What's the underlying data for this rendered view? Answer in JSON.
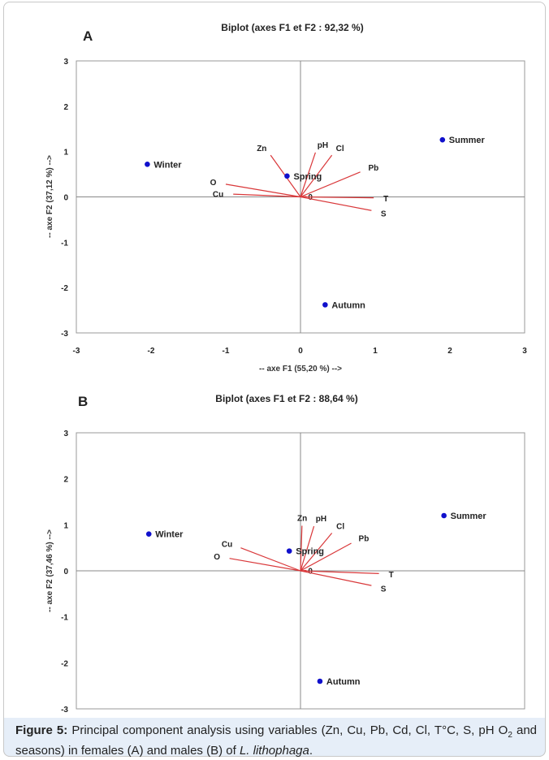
{
  "panels": [
    {
      "letter": "A",
      "title": "Biplot (axes F1 et F2 : 92,32 %)",
      "xlabel": "-- axe F1 (55,20 %) -->",
      "ylabel": "-- axe F2 (37,12 %) -->",
      "xticks": [
        "-3",
        "-2",
        "-1",
        "0",
        "1",
        "2",
        "3"
      ],
      "yticks": [
        "3",
        "2",
        "1",
        "0",
        "-1",
        "-2",
        "-3"
      ]
    },
    {
      "letter": "B",
      "title": "Biplot (axes F1 et F2 : 88,64 %)",
      "xlabel": "",
      "ylabel": "-- axe F2 (37,46 %) -->",
      "xticks": [],
      "yticks": [
        "3",
        "2",
        "1",
        "0",
        "-1",
        "-2",
        "-3"
      ]
    }
  ],
  "chart_data": [
    {
      "type": "scatter",
      "title": "Biplot (axes F1 et F2 : 92,32 %)",
      "xlabel": "-- axe F1 (55,20 %) -->",
      "ylabel": "-- axe F2 (37,12 %) -->",
      "xlim": [
        -3,
        3
      ],
      "ylim": [
        -3,
        3
      ],
      "grid": false,
      "point_color": "#1010cc",
      "vector_color": "#d9383a",
      "observations": [
        {
          "label": "Winter",
          "x": -2.05,
          "y": 0.72
        },
        {
          "label": "Spring",
          "x": -0.18,
          "y": 0.46
        },
        {
          "label": "Summer",
          "x": 1.9,
          "y": 1.26
        },
        {
          "label": "Autumn",
          "x": 0.33,
          "y": -2.38
        }
      ],
      "variables": [
        {
          "label": "Zn",
          "x": -0.4,
          "y": 0.92
        },
        {
          "label": "pH",
          "x": 0.2,
          "y": 0.98
        },
        {
          "label": "Cl",
          "x": 0.42,
          "y": 0.92
        },
        {
          "label": "Pb",
          "x": 0.8,
          "y": 0.55
        },
        {
          "label": "O",
          "x": -1.0,
          "y": 0.28
        },
        {
          "label": "Cu",
          "x": -0.9,
          "y": 0.06
        },
        {
          "label": "0",
          "x": 0.08,
          "y": 0.01
        },
        {
          "label": "T",
          "x": 0.98,
          "y": -0.02
        },
        {
          "label": "S",
          "x": 0.95,
          "y": -0.3
        }
      ]
    },
    {
      "type": "scatter",
      "title": "Biplot (axes F1 et F2 : 88,64 %)",
      "xlabel": "",
      "ylabel": "-- axe F2 (37,46 %) -->",
      "xlim": [
        -3,
        3
      ],
      "ylim": [
        -3,
        3
      ],
      "grid": false,
      "point_color": "#1010cc",
      "vector_color": "#d9383a",
      "observations": [
        {
          "label": "Winter",
          "x": -2.03,
          "y": 0.8
        },
        {
          "label": "Spring",
          "x": -0.15,
          "y": 0.43
        },
        {
          "label": "Summer",
          "x": 1.92,
          "y": 1.2
        },
        {
          "label": "Autumn",
          "x": 0.26,
          "y": -2.4
        }
      ],
      "variables": [
        {
          "label": "Zn",
          "x": 0.02,
          "y": 0.98
        },
        {
          "label": "pH",
          "x": 0.18,
          "y": 0.97
        },
        {
          "label": "Cl",
          "x": 0.42,
          "y": 0.82
        },
        {
          "label": "Pb",
          "x": 0.68,
          "y": 0.6
        },
        {
          "label": "Cu",
          "x": -0.8,
          "y": 0.5
        },
        {
          "label": "O",
          "x": -0.95,
          "y": 0.27
        },
        {
          "label": "0",
          "x": 0.08,
          "y": 0.01
        },
        {
          "label": "T",
          "x": 1.05,
          "y": -0.06
        },
        {
          "label": "S",
          "x": 0.95,
          "y": -0.32
        }
      ]
    }
  ],
  "caption": {
    "label": "Figure 5:",
    "text_before": " Principal component analysis using variables (Zn, Cu, Pb, Cd, Cl, T°C, S, pH O",
    "subscript": "2",
    "text_after": " and seasons) in females (A) and males (B) of ",
    "species": "L. lithophaga",
    "end": "."
  }
}
